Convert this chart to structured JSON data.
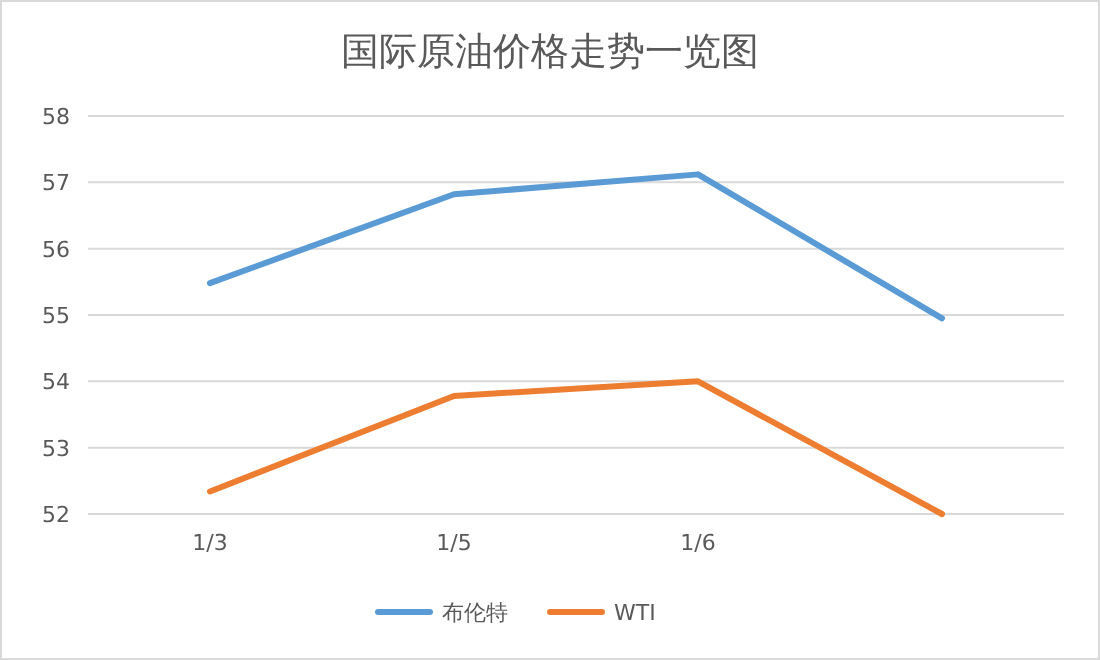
{
  "chart_data": {
    "type": "line",
    "title": "国际原油价格走势一览图",
    "categories": [
      "1/3",
      "1/5",
      "1/6",
      null
    ],
    "series": [
      {
        "name": "布伦特",
        "color": "#5b9bd5",
        "values": [
          55.48,
          56.82,
          57.12,
          54.95
        ]
      },
      {
        "name": "WTI",
        "color": "#ed7d31",
        "values": [
          52.34,
          53.78,
          54.0,
          52.0
        ]
      }
    ],
    "ylim": [
      52,
      58
    ],
    "yticks": [
      52,
      53,
      54,
      55,
      56,
      57,
      58
    ],
    "grid": "y",
    "legend": "bottom",
    "marker": "none",
    "line_style": "solid"
  }
}
